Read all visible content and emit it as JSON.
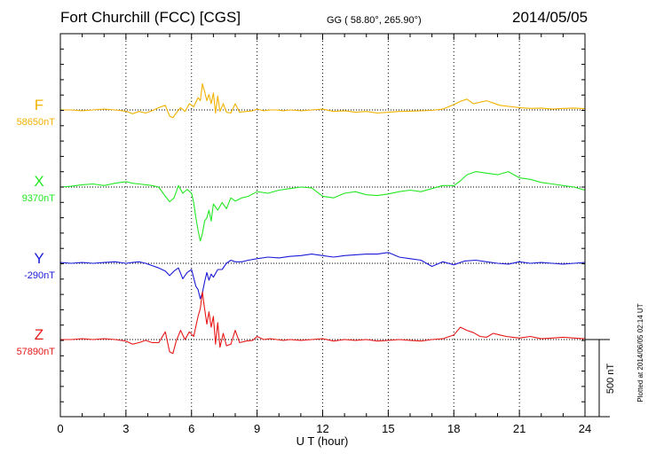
{
  "header": {
    "station": "Fort Churchill (FCC)  [CGS]",
    "coords": "GG ( 58.80°, 265.90°)",
    "date": "2014/05/05"
  },
  "plotted_note": "Plotted at 2014/06/05 02:14 UT",
  "scale_label": "500 nT",
  "chart_data": {
    "type": "line",
    "xlabel": "U T (hour)",
    "x_ticks": [
      "0",
      "3",
      "6",
      "9",
      "12",
      "15",
      "18",
      "21",
      "24"
    ],
    "xlim": [
      0,
      24
    ],
    "grid": true,
    "scale_bar_nT": 500,
    "series": [
      {
        "name": "F",
        "baseline_label": "58650nT",
        "color": "#f2b200",
        "x": [
          0,
          0.5,
          1,
          1.5,
          2,
          2.5,
          3,
          3.3,
          3.6,
          3.9,
          4.2,
          4.5,
          4.8,
          5.0,
          5.15,
          5.3,
          5.5,
          5.7,
          5.9,
          6.1,
          6.3,
          6.4,
          6.5,
          6.55,
          6.6,
          6.7,
          6.8,
          6.9,
          7.0,
          7.1,
          7.2,
          7.3,
          7.45,
          7.6,
          7.8,
          8.0,
          8.2,
          8.5,
          8.8,
          9.0,
          9.3,
          9.6,
          9.9,
          10.2,
          10.5,
          11,
          11.5,
          12,
          12.5,
          13,
          13.5,
          14,
          14.5,
          15,
          15.5,
          16,
          16.5,
          17,
          17.5,
          18,
          18.3,
          18.6,
          18.9,
          19.2,
          19.5,
          19.8,
          20.1,
          20.4,
          20.7,
          21,
          21.5,
          22,
          22.5,
          23,
          23.5,
          24
        ],
        "y": [
          0,
          0,
          -5,
          0,
          5,
          0,
          -8,
          -25,
          -10,
          -20,
          -5,
          15,
          30,
          -40,
          -50,
          -20,
          15,
          -10,
          40,
          20,
          80,
          60,
          170,
          140,
          120,
          60,
          100,
          40,
          110,
          -20,
          90,
          -10,
          40,
          -15,
          -20,
          40,
          -15,
          -10,
          -5,
          5,
          -5,
          0,
          0,
          -5,
          0,
          -5,
          0,
          5,
          -10,
          -5,
          -15,
          -10,
          -20,
          -15,
          -10,
          -8,
          -5,
          -3,
          5,
          35,
          55,
          70,
          40,
          50,
          60,
          45,
          30,
          25,
          20,
          15,
          10,
          12,
          5,
          10,
          12,
          8
        ]
      },
      {
        "name": "X",
        "baseline_label": "9370nT",
        "color": "#22e822",
        "x": [
          0,
          0.5,
          1,
          1.5,
          2,
          2.5,
          3,
          3.3,
          3.6,
          3.9,
          4.2,
          4.5,
          4.8,
          5.0,
          5.2,
          5.4,
          5.6,
          5.8,
          6.0,
          6.1,
          6.2,
          6.3,
          6.4,
          6.5,
          6.6,
          6.7,
          6.8,
          6.9,
          7.0,
          7.2,
          7.4,
          7.6,
          7.8,
          8.0,
          8.3,
          8.6,
          9.0,
          9.5,
          10,
          10.5,
          11,
          11.5,
          12,
          12.5,
          13,
          13.5,
          14,
          14.5,
          15,
          15.5,
          16,
          16.5,
          17,
          17.5,
          18,
          18.3,
          18.6,
          19,
          19.5,
          20,
          20.5,
          21,
          21.5,
          22,
          22.5,
          23,
          23.5,
          24
        ],
        "y": [
          0,
          5,
          15,
          20,
          10,
          25,
          35,
          25,
          20,
          15,
          10,
          0,
          -60,
          -95,
          -70,
          10,
          -40,
          -15,
          -40,
          -100,
          -200,
          -280,
          -350,
          -300,
          -220,
          -200,
          -150,
          -220,
          -110,
          -150,
          -100,
          -140,
          -70,
          -90,
          -70,
          -60,
          -30,
          -40,
          -20,
          -10,
          0,
          -5,
          -60,
          -70,
          -40,
          -30,
          -50,
          -55,
          -45,
          -30,
          -20,
          -30,
          -10,
          10,
          10,
          40,
          80,
          100,
          90,
          80,
          100,
          60,
          50,
          30,
          20,
          10,
          0,
          -20
        ]
      },
      {
        "name": "Y",
        "baseline_label": "-290nT",
        "color": "#1a1ad8",
        "x": [
          0,
          0.5,
          1,
          1.5,
          2,
          2.5,
          3,
          3.3,
          3.6,
          3.9,
          4.2,
          4.5,
          4.8,
          5.0,
          5.2,
          5.4,
          5.6,
          5.8,
          6.0,
          6.2,
          6.3,
          6.4,
          6.5,
          6.6,
          6.7,
          6.8,
          6.9,
          7.0,
          7.2,
          7.4,
          7.6,
          7.8,
          8.0,
          8.3,
          8.6,
          9.0,
          9.5,
          10,
          10.5,
          11,
          11.5,
          12,
          12.5,
          13,
          13.5,
          14,
          14.5,
          15,
          15.5,
          16,
          16.5,
          17,
          17.5,
          18,
          18.5,
          19,
          19.5,
          20,
          20.5,
          21,
          21.5,
          22,
          22.5,
          23,
          23.5,
          24
        ],
        "y": [
          5,
          0,
          5,
          0,
          5,
          10,
          0,
          5,
          10,
          0,
          -15,
          -30,
          -50,
          -80,
          -50,
          -30,
          -100,
          -60,
          -40,
          -150,
          -170,
          -230,
          -190,
          -120,
          -60,
          -110,
          -70,
          -90,
          -40,
          -40,
          0,
          20,
          10,
          10,
          20,
          30,
          40,
          35,
          45,
          50,
          60,
          50,
          40,
          50,
          55,
          60,
          60,
          70,
          40,
          30,
          20,
          -20,
          10,
          -10,
          15,
          20,
          10,
          0,
          -5,
          10,
          0,
          5,
          0,
          -5,
          0,
          5
        ]
      },
      {
        "name": "Z",
        "baseline_label": "57890nT",
        "color": "#e81818",
        "x": [
          0,
          0.5,
          1,
          1.5,
          2,
          2.5,
          3,
          3.3,
          3.6,
          3.9,
          4.2,
          4.5,
          4.8,
          5.0,
          5.15,
          5.3,
          5.5,
          5.7,
          5.9,
          6.1,
          6.3,
          6.4,
          6.5,
          6.55,
          6.6,
          6.7,
          6.8,
          6.9,
          7.0,
          7.1,
          7.2,
          7.3,
          7.45,
          7.6,
          7.8,
          8.0,
          8.2,
          8.5,
          8.8,
          9.0,
          9.3,
          9.6,
          9.9,
          10.2,
          10.5,
          11,
          11.5,
          12,
          12.5,
          13,
          13.5,
          14,
          14.5,
          15,
          15.5,
          16,
          16.5,
          17,
          17.5,
          18,
          18.3,
          18.6,
          18.9,
          19.2,
          19.5,
          19.8,
          20.1,
          20.4,
          20.7,
          21,
          21.5,
          22,
          22.5,
          23,
          23.5,
          24
        ],
        "y": [
          0,
          0,
          5,
          0,
          5,
          0,
          -10,
          -30,
          -20,
          -5,
          -20,
          -20,
          50,
          -80,
          -90,
          -10,
          60,
          0,
          50,
          20,
          150,
          200,
          310,
          250,
          200,
          100,
          180,
          80,
          150,
          -30,
          110,
          -50,
          40,
          -40,
          -30,
          60,
          -20,
          -10,
          -5,
          20,
          0,
          5,
          0,
          -5,
          0,
          -5,
          0,
          5,
          -10,
          0,
          -5,
          0,
          -10,
          -5,
          0,
          -5,
          -10,
          0,
          5,
          30,
          80,
          60,
          45,
          20,
          15,
          40,
          30,
          20,
          15,
          10,
          20,
          5,
          10,
          15,
          10,
          5
        ]
      }
    ]
  }
}
